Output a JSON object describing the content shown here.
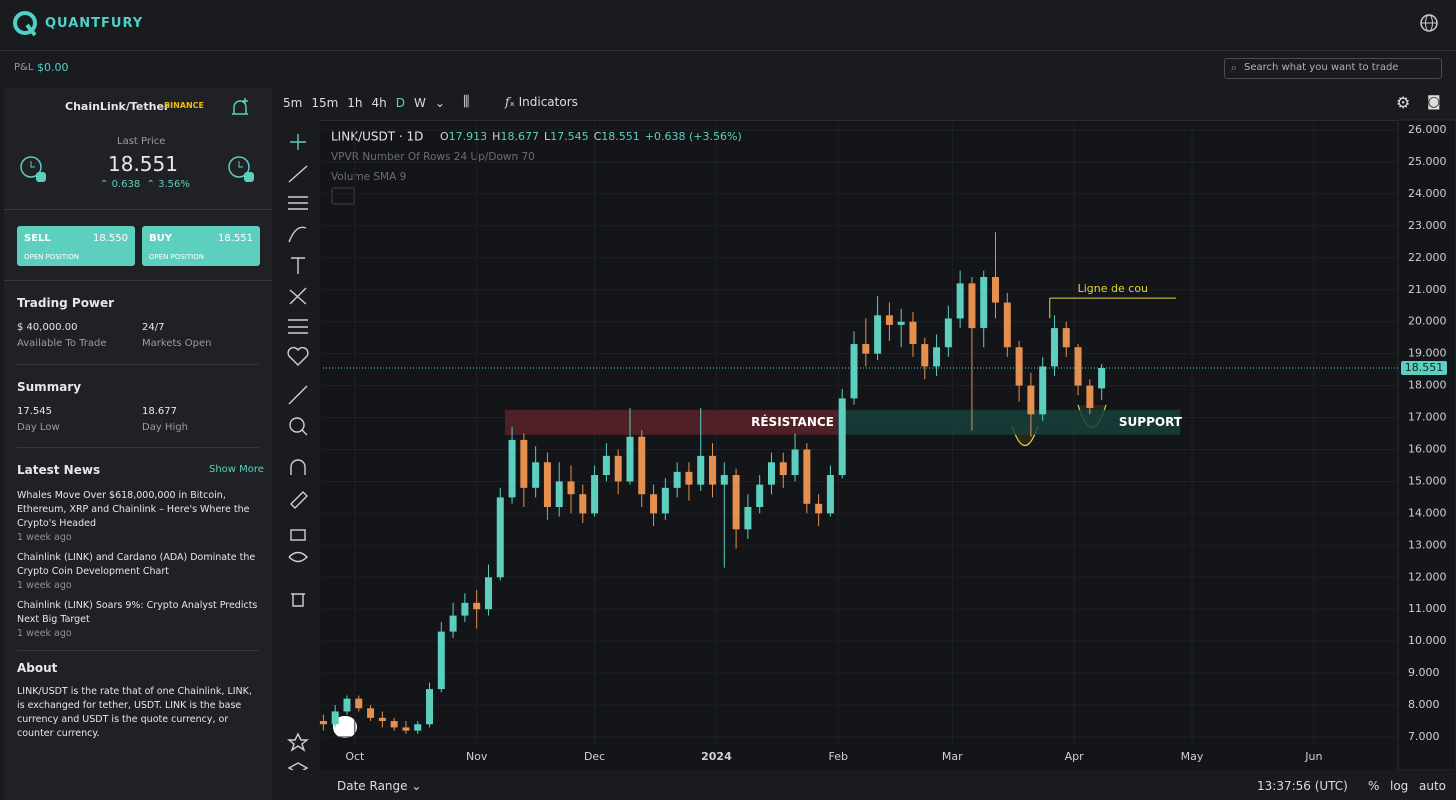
{
  "header": {
    "brand": "QUANTFURY",
    "pnl_label": "P&L",
    "pnl_value": "$0.00",
    "search_placeholder": "Search what you want to trade"
  },
  "left_panel": {
    "pair": "ChainLink/Tether",
    "exchange": "BINANCE",
    "last_price_label": "Last Price",
    "last_price": "18.551",
    "change": "0.638",
    "change_pct": "3.56%",
    "sell": {
      "label": "SELL",
      "price": "18.550",
      "action": "OPEN POSITION"
    },
    "buy": {
      "label": "BUY",
      "price": "18.551",
      "action": "OPEN POSITION"
    },
    "trading_power": {
      "title": "Trading Power",
      "items": [
        {
          "value": "$ 40,000.00",
          "label": "Available To Trade"
        },
        {
          "value": "24/7",
          "label": "Markets Open"
        }
      ]
    },
    "summary": {
      "title": "Summary",
      "items": [
        {
          "value": "17.545",
          "label": "Day Low"
        },
        {
          "value": "18.677",
          "label": "Day High"
        }
      ]
    },
    "news": {
      "title": "Latest News",
      "more": "Show More",
      "items": [
        {
          "headline": "Whales Move Over $618,000,000 in Bitcoin, Ethereum, XRP and Chainlink – Here's Where the Crypto's Headed",
          "age": "1 week ago"
        },
        {
          "headline": "Chainlink (LINK) and Cardano (ADA) Dominate the Crypto Coin Development Chart",
          "age": "1 week ago"
        },
        {
          "headline": "Chainlink (LINK) Soars 9%: Crypto Analyst Predicts Next Big Target",
          "age": "1 week ago"
        }
      ]
    },
    "about": {
      "title": "About",
      "text": "LINK/USDT is the rate that of one Chainlink, LINK, is exchanged for tether, USDT. LINK is the base currency and USDT is the quote currency, or counter currency."
    }
  },
  "toolbar": {
    "intervals": [
      "5m",
      "15m",
      "1h",
      "4h",
      "D",
      "W"
    ],
    "indicators": "Indicators"
  },
  "bottom_bar": {
    "date_range": "Date Range",
    "time": "13:37:56 (UTC)",
    "percent": "%",
    "log": "log",
    "auto": "auto"
  },
  "chart_data": {
    "type": "candlestick",
    "title": "LINK/USDT · 1D",
    "legend_labels": [
      "O",
      "H",
      "L",
      "C"
    ],
    "legend_change": "+0.638 (+3.56%)",
    "indicators": [
      "VPVR Number Of Rows 24 Up/Down 70",
      "Volume SMA 9"
    ],
    "up_color": "#5ccfbf",
    "down_color": "#e5904f",
    "grid": true,
    "xlim": [
      -8.1,
      265.4
    ],
    "ylim": [
      6.75,
      26.22
    ],
    "xticks": [
      {
        "value": 0,
        "label": "Oct"
      },
      {
        "value": 31,
        "label": "Nov"
      },
      {
        "value": 61,
        "label": "Dec"
      },
      {
        "value": 92,
        "label": "2024"
      },
      {
        "value": 123,
        "label": "Feb"
      },
      {
        "value": 152,
        "label": "Mar"
      },
      {
        "value": 183,
        "label": "Apr"
      },
      {
        "value": 213,
        "label": "May"
      },
      {
        "value": 244,
        "label": "Jun"
      }
    ],
    "yticks": [
      {
        "value": 7,
        "label": "7.000"
      },
      {
        "value": 8,
        "label": "8.000"
      },
      {
        "value": 9,
        "label": "9.000"
      },
      {
        "value": 10,
        "label": "10.000"
      },
      {
        "value": 11,
        "label": "11.000"
      },
      {
        "value": 12,
        "label": "12.000"
      },
      {
        "value": 13,
        "label": "13.000"
      },
      {
        "value": 14,
        "label": "14.000"
      },
      {
        "value": 15,
        "label": "15.000"
      },
      {
        "value": 16,
        "label": "16.000"
      },
      {
        "value": 17,
        "label": "17.000"
      },
      {
        "value": 18,
        "label": "18.000"
      },
      {
        "value": 19,
        "label": "19.000"
      },
      {
        "value": 20,
        "label": "20.000"
      },
      {
        "value": 21,
        "label": "21.000"
      },
      {
        "value": 22,
        "label": "22.000"
      },
      {
        "value": 23,
        "label": "23.000"
      },
      {
        "value": 24,
        "label": "24.000"
      },
      {
        "value": 25,
        "label": "25.000"
      },
      {
        "value": 26,
        "label": "26.000"
      }
    ],
    "x": [
      -8,
      -5,
      -2,
      1,
      4,
      7,
      10,
      13,
      16,
      19,
      22,
      25,
      28,
      31,
      34,
      37,
      40,
      43,
      46,
      49,
      52,
      55,
      58,
      61,
      64,
      67,
      70,
      73,
      76,
      79,
      82,
      85,
      88,
      91,
      94,
      97,
      100,
      103,
      106,
      109,
      112,
      115,
      118,
      121,
      124,
      127,
      130,
      133,
      136,
      139,
      142,
      145,
      148,
      151,
      154,
      157,
      160,
      163,
      166,
      169,
      172,
      175,
      178,
      181,
      184,
      187,
      190
    ],
    "open": [
      7.5,
      7.4,
      7.8,
      8.2,
      7.9,
      7.6,
      7.5,
      7.3,
      7.2,
      7.4,
      8.5,
      10.3,
      10.8,
      11.2,
      11.0,
      12.0,
      14.5,
      16.3,
      14.8,
      15.6,
      14.2,
      15.0,
      14.6,
      14.0,
      15.2,
      15.8,
      15.0,
      16.4,
      14.6,
      14.0,
      14.8,
      15.3,
      14.9,
      15.8,
      14.9,
      15.2,
      13.5,
      14.2,
      14.9,
      15.6,
      15.2,
      16.0,
      14.3,
      14.0,
      15.2,
      17.6,
      19.3,
      19.0,
      20.2,
      19.9,
      20.0,
      19.3,
      18.6,
      19.2,
      20.1,
      21.2,
      19.8,
      21.4,
      20.6,
      19.2,
      18.0,
      17.1,
      18.6,
      19.8,
      19.2,
      18.0,
      17.913
    ],
    "high": [
      7.7,
      8.0,
      8.3,
      8.3,
      8.0,
      7.8,
      7.6,
      7.5,
      7.5,
      8.7,
      10.6,
      11.2,
      11.5,
      11.6,
      12.4,
      14.8,
      16.7,
      16.5,
      16.1,
      15.9,
      15.6,
      15.5,
      14.9,
      15.5,
      16.2,
      16.0,
      17.3,
      16.6,
      14.9,
      15.1,
      15.6,
      15.6,
      17.3,
      16.2,
      15.6,
      15.4,
      14.6,
      15.2,
      15.9,
      15.9,
      16.5,
      16.2,
      14.6,
      15.5,
      17.9,
      19.7,
      20.1,
      20.8,
      20.6,
      20.4,
      20.3,
      19.5,
      19.6,
      20.5,
      21.6,
      21.4,
      21.6,
      22.8,
      20.9,
      19.4,
      18.4,
      18.9,
      20.2,
      20.0,
      19.3,
      18.2,
      18.677
    ],
    "low": [
      7.2,
      7.3,
      7.7,
      7.8,
      7.5,
      7.3,
      7.2,
      7.1,
      7.1,
      7.3,
      8.4,
      10.1,
      10.6,
      10.4,
      10.8,
      11.9,
      14.3,
      14.2,
      14.5,
      13.8,
      13.9,
      14.0,
      13.7,
      13.9,
      15.0,
      14.6,
      14.9,
      14.2,
      13.6,
      13.8,
      14.5,
      14.4,
      14.7,
      14.5,
      12.3,
      12.9,
      13.2,
      14.0,
      14.6,
      14.8,
      15.0,
      14.0,
      13.6,
      13.9,
      15.1,
      17.4,
      18.6,
      18.8,
      19.4,
      19.2,
      18.9,
      18.2,
      18.3,
      18.9,
      19.8,
      16.6,
      19.2,
      20.1,
      18.9,
      17.5,
      16.4,
      16.9,
      18.3,
      18.9,
      17.7,
      17.1,
      17.545
    ],
    "close": [
      7.4,
      7.8,
      8.2,
      7.9,
      7.6,
      7.5,
      7.3,
      7.2,
      7.4,
      8.5,
      10.3,
      10.8,
      11.2,
      11.0,
      12.0,
      14.5,
      16.3,
      14.8,
      15.6,
      14.2,
      15.0,
      14.6,
      14.0,
      15.2,
      15.8,
      15.0,
      16.4,
      14.6,
      14.0,
      14.8,
      15.3,
      14.9,
      15.8,
      14.9,
      15.2,
      13.5,
      14.2,
      14.9,
      15.6,
      15.2,
      16.0,
      14.3,
      14.0,
      15.2,
      17.6,
      19.3,
      19.0,
      20.2,
      19.9,
      20.0,
      19.3,
      18.6,
      19.2,
      20.1,
      21.2,
      19.8,
      21.4,
      20.6,
      19.2,
      18.0,
      17.1,
      18.6,
      19.8,
      19.2,
      18.0,
      17.3,
      18.551
    ],
    "price_line": 18.551,
    "zones": [
      {
        "label": "RÉSISTANCE",
        "x": [
          38.2,
          122.9
        ],
        "y": [
          16.46,
          17.24
        ],
        "color": "#5a2329"
      },
      {
        "label": "SUPPORT",
        "x": [
          122.9,
          210
        ],
        "y": [
          16.46,
          17.24
        ],
        "color": "#17403c"
      }
    ],
    "neckline": {
      "label": "Ligne de cou",
      "x": [
        176.8,
        208.9
      ],
      "y": 20.74,
      "color": "#e6d23a"
    }
  }
}
